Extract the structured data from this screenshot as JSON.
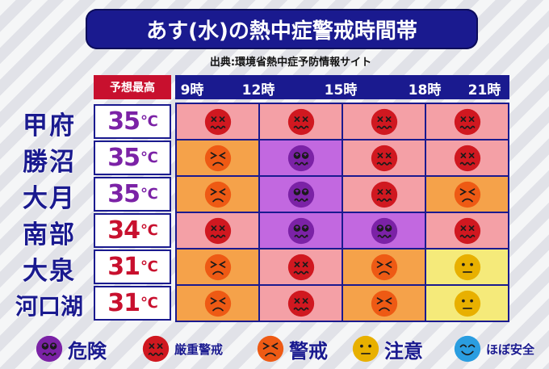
{
  "title": "あす(水)の熱中症警戒時間帯",
  "source": "出典:環境省熱中症予防情報サイト",
  "forecast_label": "予想最高",
  "times": [
    "9時",
    "12時",
    "15時",
    "18時",
    "21時"
  ],
  "temp_unit": "℃",
  "levels": {
    "kiken": {
      "label": "危険",
      "face": "#7b22a6",
      "cell": "#c268e0"
    },
    "genju": {
      "label": "厳重警戒",
      "face": "#d01820",
      "cell": "#f4a0a6"
    },
    "keikai": {
      "label": "警戒",
      "face": "#ee5a14",
      "cell": "#f5a24a"
    },
    "chui": {
      "label": "注意",
      "face": "#e8b000",
      "cell": "#f5ea7a"
    },
    "hobo": {
      "label": "ほぼ安全",
      "face": "#2a9de0",
      "cell": "#bfe3f5"
    }
  },
  "legend_order": [
    "kiken",
    "genju",
    "keikai",
    "chui",
    "hobo"
  ],
  "rows": [
    {
      "city": "甲府",
      "temp": "35",
      "temp_color": "#7b22a6",
      "cells": [
        "genju",
        "genju",
        "genju",
        "genju"
      ]
    },
    {
      "city": "勝沼",
      "temp": "35",
      "temp_color": "#7b22a6",
      "cells": [
        "keikai",
        "kiken",
        "genju",
        "genju"
      ]
    },
    {
      "city": "大月",
      "temp": "35",
      "temp_color": "#7b22a6",
      "cells": [
        "keikai",
        "kiken",
        "genju",
        "keikai"
      ]
    },
    {
      "city": "南部",
      "temp": "34",
      "temp_color": "#c8102e",
      "cells": [
        "genju",
        "kiken",
        "kiken",
        "genju"
      ]
    },
    {
      "city": "大泉",
      "temp": "31",
      "temp_color": "#c8102e",
      "cells": [
        "keikai",
        "genju",
        "keikai",
        "chui"
      ]
    },
    {
      "city": "河口湖",
      "temp": "31",
      "temp_color": "#c8102e",
      "cells": [
        "keikai",
        "genju",
        "keikai",
        "chui"
      ]
    }
  ]
}
